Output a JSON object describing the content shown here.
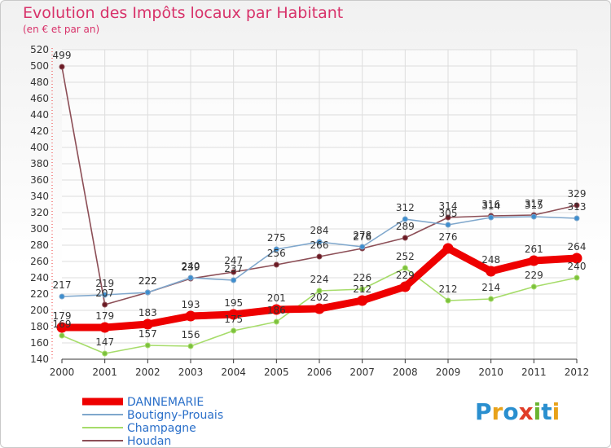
{
  "title": "Evolution des Impôts locaux par Habitant",
  "subtitle": "(en € et par an)",
  "logo": {
    "text": "Proxiti",
    "letters": [
      "P",
      "r",
      "o",
      "x",
      "i",
      "t",
      "i"
    ],
    "colors": [
      "#2a8fcf",
      "#e8a21a",
      "#2a8fcf",
      "#e03c28",
      "#6ab431",
      "#2a8fcf",
      "#e8a21a"
    ]
  },
  "chart_data": {
    "type": "line",
    "title": "Evolution des Impôts locaux par Habitant",
    "subtitle": "(en € et par an)",
    "xlabel": "",
    "ylabel": "",
    "x": [
      "2000",
      "2001",
      "2002",
      "2003",
      "2004",
      "2005",
      "2006",
      "2007",
      "2008",
      "2009",
      "2010",
      "2011",
      "2012"
    ],
    "ylim": [
      140,
      520
    ],
    "ytick_step": 20,
    "legend_position": "bottom-left",
    "series": [
      {
        "name": "DANNEMARIE",
        "color": "#ee0000",
        "style": "thick",
        "values": [
          179,
          179,
          183,
          193,
          195,
          201,
          202,
          212,
          229,
          276,
          248,
          261,
          264
        ],
        "labels": [
          "179",
          "179",
          "183",
          "193",
          "195",
          "201",
          "202",
          "212",
          "229",
          "276",
          "248",
          "261",
          "264"
        ]
      },
      {
        "name": "Boutigny-Prouais",
        "color": "#7fa7cc",
        "marker": "#3d8ecf",
        "values": [
          217,
          219,
          222,
          240,
          237,
          275,
          284,
          278,
          312,
          305,
          314,
          315,
          313
        ],
        "labels": [
          "217",
          "219",
          "222",
          "240",
          "237",
          "275",
          "284",
          "278",
          "312",
          "305",
          "314",
          "315",
          "313"
        ]
      },
      {
        "name": "Champagne",
        "color": "#a6dc6a",
        "marker": "#7cc13d",
        "values": [
          169,
          147,
          157,
          156,
          175,
          186,
          224,
          226,
          252,
          212,
          214,
          229,
          240
        ],
        "labels": [
          "169",
          "147",
          "157",
          "156",
          "175",
          "186",
          "224",
          "226",
          "252",
          "212",
          "214",
          "229",
          "240"
        ]
      },
      {
        "name": "Houdan",
        "color": "#8c4e56",
        "marker": "#6b1a24",
        "values": [
          499,
          207,
          222,
          239,
          247,
          256,
          266,
          276,
          289,
          314,
          316,
          317,
          329
        ],
        "labels": [
          "499",
          "207",
          "222",
          "239",
          "247",
          "256",
          "266",
          "276",
          "289",
          "314",
          "316",
          "317",
          "329"
        ]
      }
    ]
  }
}
